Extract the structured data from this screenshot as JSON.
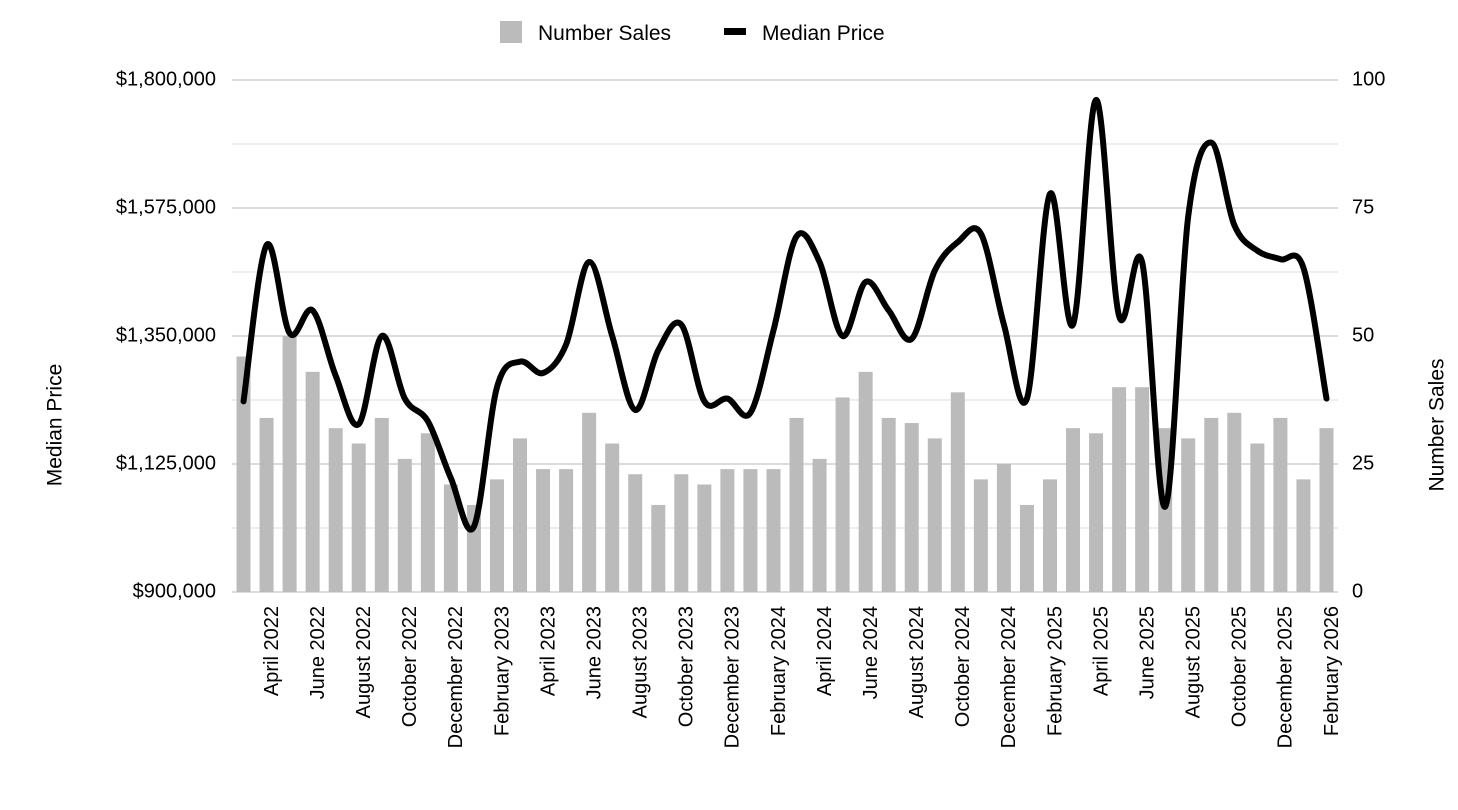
{
  "chart_data": {
    "type": "bar",
    "legend": {
      "placement": "top-center",
      "items": [
        {
          "label": "Number Sales",
          "kind": "bar",
          "color": "#bbbbbb"
        },
        {
          "label": "Median Price",
          "kind": "line",
          "color": "#000000"
        }
      ]
    },
    "left_axis": {
      "title": "Median Price",
      "range": [
        900000,
        1800000
      ],
      "ticks": [
        "$900,000",
        "$1,125,000",
        "$1,350,000",
        "$1,575,000",
        "$1,800,000"
      ],
      "tick_values": [
        900000,
        1125000,
        1350000,
        1575000,
        1800000
      ]
    },
    "right_axis": {
      "title": "Number Sales",
      "range": [
        0,
        100
      ],
      "ticks": [
        "0",
        "25",
        "50",
        "75",
        "100"
      ],
      "tick_values": [
        0,
        25,
        50,
        75,
        100
      ]
    },
    "x_labels": [
      {
        "index": 1,
        "label": "April 2022"
      },
      {
        "index": 3,
        "label": "June  2022"
      },
      {
        "index": 5,
        "label": "August 2022"
      },
      {
        "index": 7,
        "label": "October 2022"
      },
      {
        "index": 9,
        "label": "December 2022"
      },
      {
        "index": 11,
        "label": "February 2023"
      },
      {
        "index": 13,
        "label": "April 2023"
      },
      {
        "index": 15,
        "label": "June 2023"
      },
      {
        "index": 17,
        "label": "August 2023"
      },
      {
        "index": 19,
        "label": "October 2023"
      },
      {
        "index": 21,
        "label": "December 2023"
      },
      {
        "index": 23,
        "label": "February 2024"
      },
      {
        "index": 25,
        "label": "April 2024"
      },
      {
        "index": 27,
        "label": "June 2024"
      },
      {
        "index": 29,
        "label": "August 2024"
      },
      {
        "index": 31,
        "label": "October 2024"
      },
      {
        "index": 33,
        "label": "December 2024"
      },
      {
        "index": 35,
        "label": "February 2025"
      },
      {
        "index": 37,
        "label": "April 2025"
      },
      {
        "index": 39,
        "label": "June 2025"
      },
      {
        "index": 41,
        "label": "August  2025"
      },
      {
        "index": 43,
        "label": "October 2025"
      },
      {
        "index": 45,
        "label": "December  2025"
      },
      {
        "index": 47,
        "label": "February  2026"
      }
    ],
    "series": [
      {
        "name": "Number Sales",
        "type": "bar",
        "axis": "right",
        "color": "#bbbbbb",
        "values": [
          46,
          34,
          50,
          43,
          32,
          29,
          34,
          26,
          31,
          21,
          17,
          22,
          30,
          24,
          24,
          35,
          29,
          23,
          17,
          23,
          21,
          24,
          24,
          24,
          34,
          26,
          38,
          43,
          34,
          33,
          30,
          39,
          22,
          25,
          17,
          22,
          32,
          31,
          40,
          40,
          32,
          30,
          34,
          35,
          29,
          34,
          22,
          32
        ]
      },
      {
        "name": "Median Price",
        "type": "line",
        "axis": "left",
        "color": "#000000",
        "values": [
          1235000,
          1510000,
          1355000,
          1395000,
          1280000,
          1195000,
          1350000,
          1240000,
          1200000,
          1100000,
          1015000,
          1260000,
          1305000,
          1285000,
          1335000,
          1480000,
          1350000,
          1220000,
          1325000,
          1370000,
          1235000,
          1240000,
          1215000,
          1360000,
          1525000,
          1480000,
          1350000,
          1445000,
          1395000,
          1345000,
          1465000,
          1515000,
          1530000,
          1370000,
          1240000,
          1600000,
          1370000,
          1765000,
          1385000,
          1480000,
          1050000,
          1560000,
          1690000,
          1545000,
          1500000,
          1485000,
          1470000,
          1240000
        ]
      }
    ]
  }
}
